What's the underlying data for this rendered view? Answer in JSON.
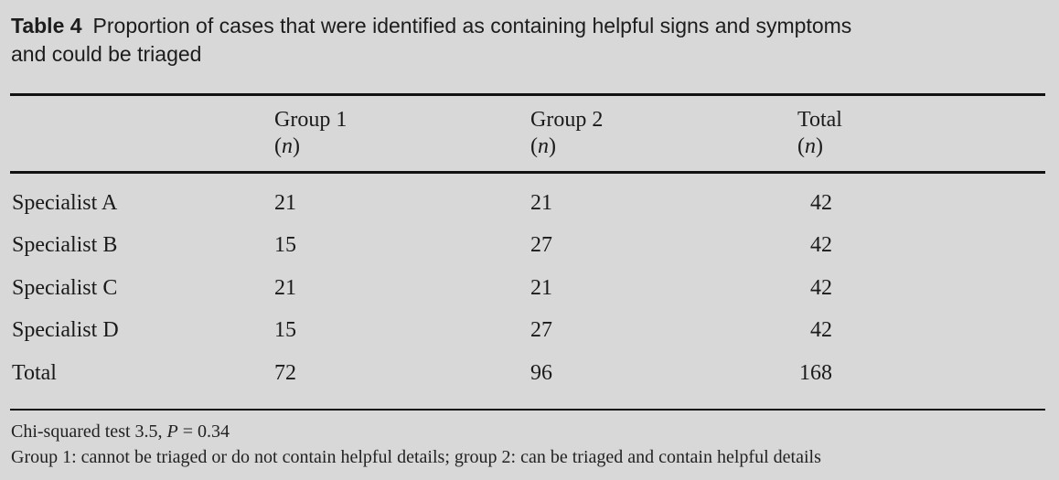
{
  "title": {
    "label": "Table 4",
    "text": "Proportion of cases that were identified as containing helpful signs and symptoms\nand could be triaged"
  },
  "table": {
    "n_unit": {
      "open": "(",
      "symbol": "n",
      "close": ")"
    },
    "columns": [
      {
        "label": "Group 1"
      },
      {
        "label": "Group 2"
      },
      {
        "label": "Total"
      }
    ],
    "rows": [
      {
        "label": "Specialist A",
        "cells": [
          "21",
          "21",
          "42"
        ]
      },
      {
        "label": "Specialist B",
        "cells": [
          "15",
          "27",
          "42"
        ]
      },
      {
        "label": "Specialist C",
        "cells": [
          "21",
          "21",
          "42"
        ]
      },
      {
        "label": "Specialist D",
        "cells": [
          "15",
          "27",
          "42"
        ]
      },
      {
        "label": "Total",
        "cells": [
          "72",
          "96",
          "168"
        ]
      }
    ]
  },
  "footnotes": {
    "chi_text": "Chi-squared test 3.5, ",
    "p_symbol": "P",
    "p_value": " = 0.34",
    "group_definitions": "Group 1: cannot be triaged or do not contain helpful details; group 2: can be triaged and contain helpful details"
  },
  "colors": {
    "background": "#d8d8d8",
    "text": "#1a1a1a",
    "rule": "#121212"
  }
}
